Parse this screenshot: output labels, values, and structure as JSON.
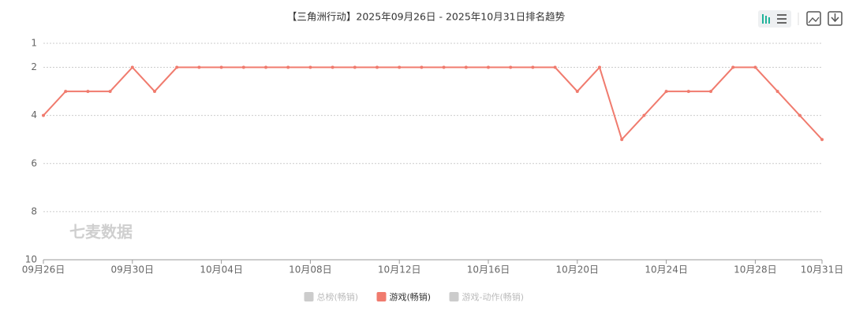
{
  "chart_data": {
    "type": "line",
    "title": "【三角洲行动】2025年09月26日 - 2025年10月31日排名趋势",
    "watermark": "七麦数据",
    "categories": [
      "09月26日",
      null,
      null,
      null,
      "09月30日",
      null,
      null,
      null,
      "10月04日",
      null,
      null,
      null,
      "10月08日",
      null,
      null,
      null,
      "10月12日",
      null,
      null,
      null,
      "10月16日",
      null,
      null,
      null,
      "10月20日",
      null,
      null,
      null,
      "10月24日",
      null,
      null,
      null,
      "10月28日",
      null,
      null,
      "10月31日"
    ],
    "series": [
      {
        "name": "游戏(畅销)",
        "color": "#f07b6e",
        "values": [
          4,
          3,
          3,
          3,
          2,
          3,
          2,
          2,
          2,
          2,
          2,
          2,
          2,
          2,
          2,
          2,
          2,
          2,
          2,
          2,
          2,
          2,
          2,
          2,
          3,
          2,
          5,
          4,
          3,
          3,
          3,
          2,
          2,
          3,
          4,
          5
        ]
      }
    ],
    "legend": [
      {
        "name": "总榜(畅销)",
        "color": "#cccccc"
      },
      {
        "name": "游戏(畅销)",
        "color": "#f07b6e"
      },
      {
        "name": "游戏-动作(畅销)",
        "color": "#cccccc"
      }
    ],
    "ylim": [
      10,
      1
    ],
    "yticks": [
      1,
      2,
      4,
      6,
      8,
      10
    ],
    "grid": true
  }
}
